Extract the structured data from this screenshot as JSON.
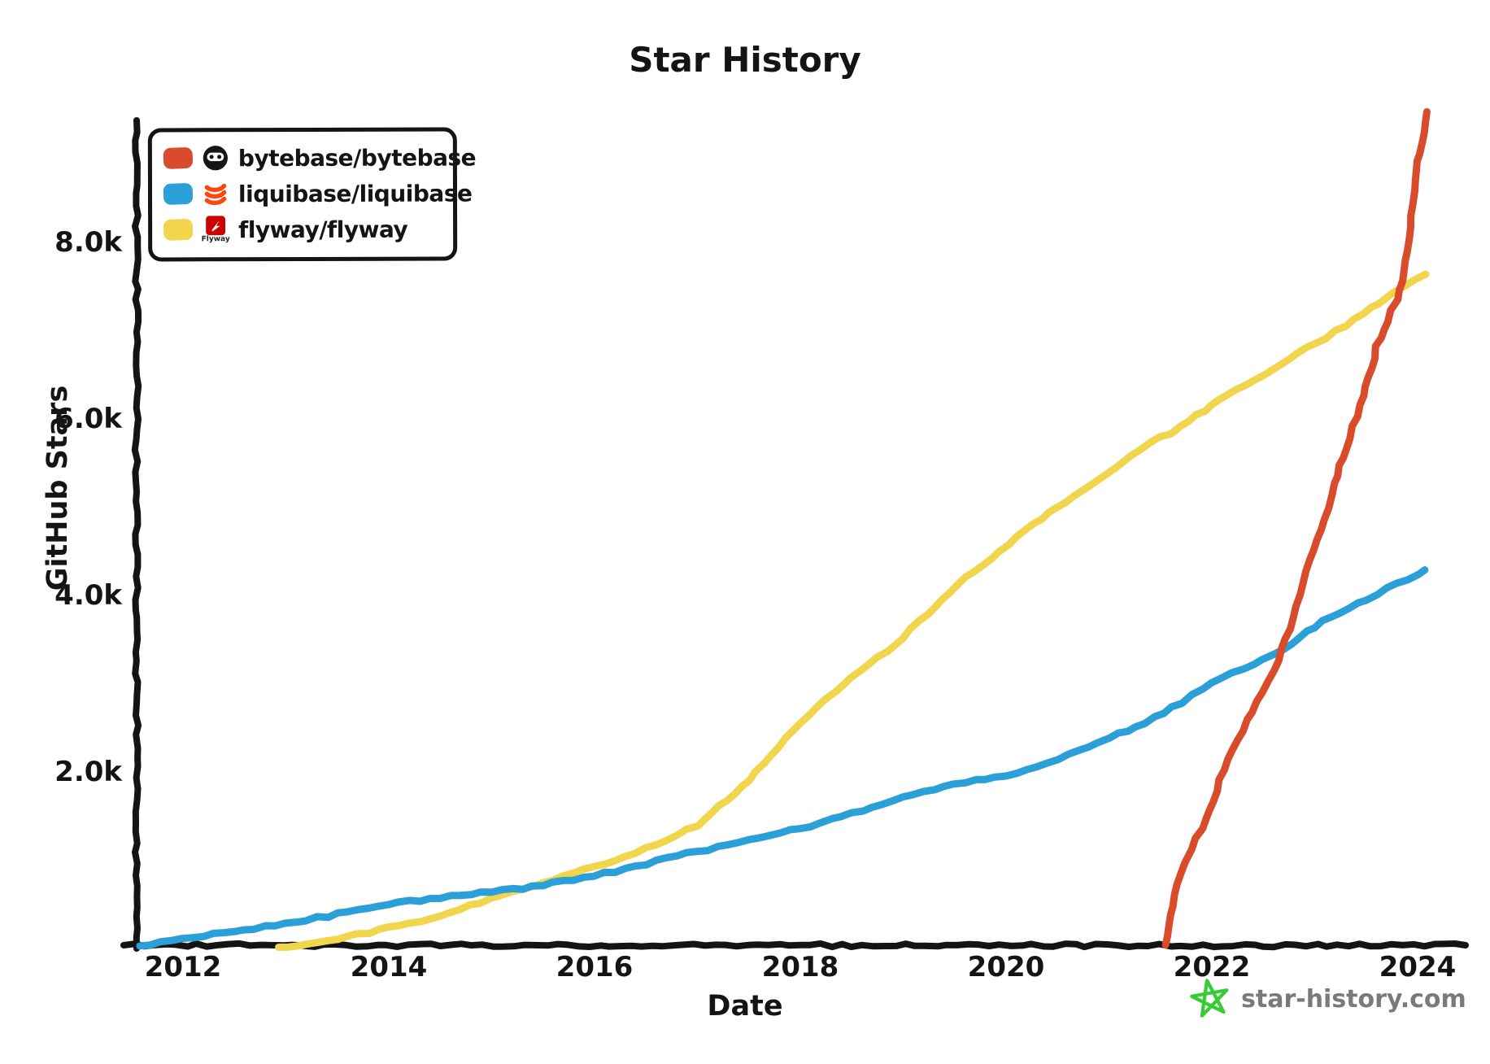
{
  "title": "Star History",
  "axes": {
    "x_label": "Date",
    "y_label": "GitHub Stars",
    "x_ticks": [
      {
        "label": "2012",
        "value": 2012
      },
      {
        "label": "2014",
        "value": 2014
      },
      {
        "label": "2016",
        "value": 2016
      },
      {
        "label": "2018",
        "value": 2018
      },
      {
        "label": "2020",
        "value": 2020
      },
      {
        "label": "2022",
        "value": 2022
      },
      {
        "label": "2024",
        "value": 2024
      }
    ],
    "y_ticks": [
      {
        "label": "2.0k",
        "value": 2000
      },
      {
        "label": "4.0k",
        "value": 4000
      },
      {
        "label": "6.0k",
        "value": 6000
      },
      {
        "label": "8.0k",
        "value": 8000
      }
    ]
  },
  "legend": {
    "items": [
      {
        "label": "bytebase/bytebase",
        "color": "#d94c2b",
        "icon": "bytebase-avatar-icon"
      },
      {
        "label": "liquibase/liquibase",
        "color": "#2b9fd8",
        "icon": "liquibase-logo-icon"
      },
      {
        "label": "flyway/flyway",
        "color": "#f1d54d",
        "icon": "flyway-logo-icon",
        "icon_text": "Flyway"
      }
    ]
  },
  "watermark": {
    "text": "star-history.com",
    "star_color": "#35cc35",
    "text_color": "#7a7a7a"
  },
  "chart_data": {
    "type": "line",
    "title": "Star History",
    "xlabel": "Date",
    "ylabel": "GitHub Stars",
    "x_range": [
      2011.5,
      2024.3
    ],
    "y_range": [
      0,
      9500
    ],
    "grid": false,
    "legend_position": "top-left",
    "style": "xkcd-hand-drawn",
    "series": [
      {
        "name": "bytebase/bytebase",
        "color": "#d94c2b",
        "points": [
          [
            2021.55,
            30
          ],
          [
            2021.62,
            480
          ],
          [
            2021.7,
            850
          ],
          [
            2021.8,
            1100
          ],
          [
            2021.9,
            1350
          ],
          [
            2022.0,
            1650
          ],
          [
            2022.16,
            2140
          ],
          [
            2022.3,
            2470
          ],
          [
            2022.45,
            2780
          ],
          [
            2022.6,
            3150
          ],
          [
            2022.72,
            3500
          ],
          [
            2022.85,
            4010
          ],
          [
            2022.95,
            4400
          ],
          [
            2023.1,
            4850
          ],
          [
            2023.2,
            5250
          ],
          [
            2023.3,
            5660
          ],
          [
            2023.45,
            6130
          ],
          [
            2023.6,
            6800
          ],
          [
            2023.7,
            7100
          ],
          [
            2023.8,
            7350
          ],
          [
            2023.86,
            7550
          ],
          [
            2023.9,
            7900
          ],
          [
            2023.94,
            8300
          ],
          [
            2023.98,
            8700
          ],
          [
            2024.02,
            9000
          ],
          [
            2024.06,
            9250
          ],
          [
            2024.09,
            9470
          ]
        ]
      },
      {
        "name": "liquibase/liquibase",
        "color": "#2b9fd8",
        "points": [
          [
            2011.58,
            20
          ],
          [
            2012,
            100
          ],
          [
            2012.5,
            185
          ],
          [
            2013,
            270
          ],
          [
            2013.5,
            380
          ],
          [
            2014,
            490
          ],
          [
            2014.5,
            565
          ],
          [
            2015,
            635
          ],
          [
            2015.3,
            665
          ],
          [
            2016,
            810
          ],
          [
            2016.5,
            950
          ],
          [
            2017,
            1090
          ],
          [
            2017.5,
            1220
          ],
          [
            2018,
            1350
          ],
          [
            2018.5,
            1520
          ],
          [
            2019,
            1700
          ],
          [
            2019.5,
            1850
          ],
          [
            2020,
            1950
          ],
          [
            2020.3,
            2060
          ],
          [
            2020.6,
            2190
          ],
          [
            2021,
            2380
          ],
          [
            2021.35,
            2550
          ],
          [
            2021.7,
            2780
          ],
          [
            2022,
            3000
          ],
          [
            2022.3,
            3160
          ],
          [
            2022.7,
            3390
          ],
          [
            2023,
            3640
          ],
          [
            2023.5,
            3950
          ],
          [
            2024,
            4240
          ],
          [
            2024.07,
            4280
          ]
        ]
      },
      {
        "name": "flyway/flyway",
        "color": "#f1d54d",
        "points": [
          [
            2012.93,
            5
          ],
          [
            2013.5,
            90
          ],
          [
            2014,
            230
          ],
          [
            2014.5,
            360
          ],
          [
            2015,
            550
          ],
          [
            2015.3,
            670
          ],
          [
            2016,
            920
          ],
          [
            2016.5,
            1120
          ],
          [
            2017,
            1380
          ],
          [
            2017.5,
            1900
          ],
          [
            2018,
            2550
          ],
          [
            2018.5,
            3060
          ],
          [
            2019,
            3520
          ],
          [
            2019.6,
            4190
          ],
          [
            2020.1,
            4650
          ],
          [
            2020.5,
            5000
          ],
          [
            2020.9,
            5310
          ],
          [
            2021.3,
            5640
          ],
          [
            2021.7,
            5900
          ],
          [
            2022,
            6150
          ],
          [
            2022.5,
            6500
          ],
          [
            2023,
            6850
          ],
          [
            2023.3,
            7050
          ],
          [
            2023.86,
            7500
          ],
          [
            2024.08,
            7630
          ]
        ]
      }
    ]
  }
}
